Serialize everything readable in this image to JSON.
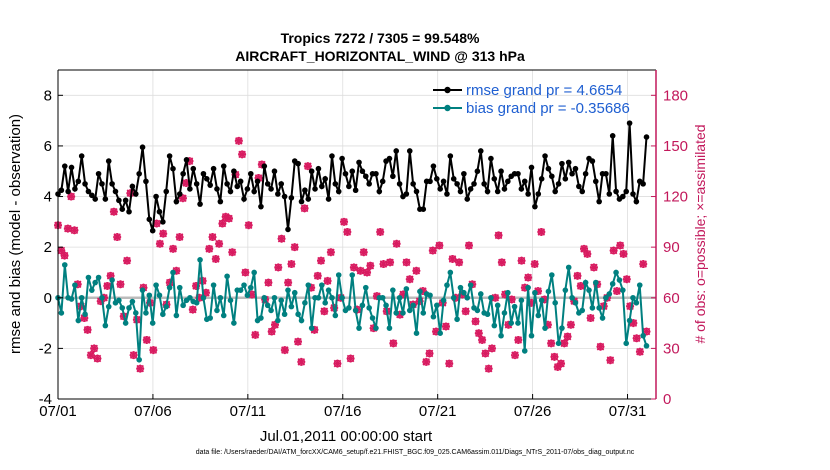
{
  "chart_data": {
    "type": "line",
    "title_line1": "Tropics 7272 / 7305 = 99.548%",
    "title_line2": "AIRCRAFT_HORIZONTAL_WIND @ 313 hPa",
    "xlabel": "Jul.01,2011 00:00:00 start",
    "ylabel_left": "rmse and bias (model - observation)",
    "ylabel_right": "# of obs: o=possible; ×=assimilated",
    "xlim": [
      0,
      31.5
    ],
    "ylim_left": [
      -4,
      9
    ],
    "ylim_right": [
      0,
      195
    ],
    "x_ticks": [
      {
        "v": 0,
        "label": "07/01"
      },
      {
        "v": 5,
        "label": "07/06"
      },
      {
        "v": 10,
        "label": "07/11"
      },
      {
        "v": 15,
        "label": "07/16"
      },
      {
        "v": 20,
        "label": "07/21"
      },
      {
        "v": 25,
        "label": "07/26"
      },
      {
        "v": 30,
        "label": "07/31"
      }
    ],
    "y_ticks_left": [
      "-4",
      "-2",
      "0",
      "2",
      "4",
      "6",
      "8"
    ],
    "y_ticks_right": [
      "0",
      "30",
      "60",
      "90",
      "120",
      "150",
      "180"
    ],
    "zero_line": 0,
    "colors": {
      "rmse": "#000000",
      "bias": "#008080",
      "obs": "#d81b60",
      "axis_right": "#c2185b",
      "zero": "#bbbbbb",
      "grid": "#dddddd",
      "legend_text": "#1f5fd1"
    },
    "legend": {
      "placement": "top-right",
      "entries": [
        "rmse grand pr = 4.6654",
        "bias grand pr = -0.35686"
      ]
    },
    "series": [
      {
        "name": "rmse",
        "values": [
          4.1,
          4.25,
          5.2,
          4.2,
          5.15,
          4.3,
          4.6,
          5.6,
          4.5,
          4.2,
          4.05,
          3.9,
          4.9,
          4.5,
          3.9,
          5.4,
          4.5,
          4.2,
          3.85,
          3.5,
          3.85,
          3.4,
          4.4,
          4.1,
          4.9,
          5.95,
          4.6,
          3.1,
          2.65,
          4.0,
          3.4,
          3.0,
          4.2,
          5.6,
          5.1,
          3.8,
          4.1,
          4.9,
          5.45,
          4.3,
          5.1,
          4.5,
          3.7,
          4.9,
          4.7,
          4.45,
          5.1,
          4.3,
          3.8,
          5.2,
          4.5,
          4.2,
          5.0,
          4.4,
          4.6,
          3.9,
          4.3,
          4.9,
          4.2,
          4.6,
          3.6,
          5.2,
          4.5,
          4.3,
          5.0,
          4.1,
          4.5,
          4.0,
          2.7,
          3.95,
          5.4,
          5.3,
          3.8,
          4.25,
          3.9,
          5.0,
          4.3,
          5.1,
          4.4,
          4.7,
          3.9,
          5.6,
          4.5,
          4.2,
          5.5,
          4.9,
          4.4,
          5.0,
          4.25,
          5.35,
          5.0,
          4.8,
          4.5,
          4.9,
          4.9,
          4.2,
          4.6,
          5.4,
          5.5,
          4.8,
          5.8,
          4.5,
          4.0,
          4.1,
          5.8,
          4.5,
          4.2,
          3.5,
          3.5,
          4.6,
          4.6,
          5.2,
          4.7,
          4.3,
          4.6,
          4.1,
          5.6,
          4.7,
          4.5,
          4.2,
          4.9,
          3.9,
          4.3,
          4.5,
          5.0,
          5.8,
          4.5,
          4.2,
          5.5,
          4.7,
          4.2,
          5.0,
          4.3,
          4.6,
          4.8,
          4.9,
          4.9,
          4.3,
          4.6,
          4.1,
          5.15,
          3.6,
          4.1,
          4.7,
          5.6,
          5.1,
          4.8,
          4.2,
          4.5,
          5.3,
          4.7,
          5.35,
          4.9,
          5.1,
          4.4,
          4.2,
          4.9,
          5.5,
          5.4,
          4.6,
          3.8,
          4.9,
          4.9,
          4.1,
          6.4,
          4.2,
          3.9,
          4.0,
          4.2,
          6.9,
          4.1,
          3.8,
          4.6,
          4.5,
          6.35
        ]
      },
      {
        "name": "bias",
        "values": [
          0.0,
          -0.6,
          1.3,
          0.0,
          -0.05,
          0.5,
          -0.9,
          0.0,
          -0.65,
          0.8,
          0.3,
          0.6,
          0.8,
          0.0,
          -1.1,
          -0.35,
          0.7,
          -0.2,
          -0.1,
          -0.4,
          -1.0,
          -0.4,
          -0.15,
          -0.6,
          -2.45,
          0.3,
          -0.6,
          0.1,
          -1.0,
          0.5,
          0.1,
          -0.65,
          -0.35,
          0.4,
          1.0,
          -0.7,
          0.4,
          -0.3,
          -0.1,
          0.0,
          -0.15,
          -0.2,
          1.5,
          0.0,
          -0.85,
          -0.8,
          0.5,
          -0.5,
          0.0,
          -0.7,
          0.85,
          -0.1,
          -1.0,
          0.3,
          0.3,
          0.5,
          0.1,
          0.4,
          1.0,
          -0.9,
          -0.8,
          0.0,
          -0.3,
          -0.5,
          0.0,
          -0.9,
          -0.1,
          -0.65,
          0.3,
          -0.35,
          0.2,
          -0.65,
          -0.9,
          -0.2,
          0.5,
          -1.2,
          0.0,
          0.0,
          0.5,
          -0.2,
          0.3,
          0.0,
          -0.7,
          0.9,
          0.0,
          -0.5,
          -0.4,
          0.9,
          -0.5,
          -1.2,
          -0.3,
          0.4,
          -0.4,
          -0.8,
          -1.2,
          0.0,
          0.0,
          -0.3,
          -1.2,
          0.3,
          -0.6,
          0.0,
          -0.6,
          0.35,
          -0.5,
          -0.3,
          -1.4,
          0.25,
          -0.6,
          0.15,
          0.1,
          -0.75,
          -0.3,
          -1.4,
          -0.1,
          0.5,
          1.0,
          0.0,
          -0.85,
          0.4,
          0.2,
          0.0,
          0.5,
          -0.4,
          -0.5,
          0.15,
          -0.6,
          -0.65,
          0.0,
          -1.1,
          -0.3,
          -1.5,
          -0.6,
          0.2,
          -1.0,
          -0.35,
          -1.0,
          -0.1,
          -2.1,
          0.4,
          -1.5,
          0.2,
          -0.7,
          -0.1,
          -1.2,
          0.25,
          0.9,
          -0.2,
          -1.8,
          -1.2,
          0.3,
          1.2,
          0.0,
          -0.2,
          -0.6,
          -0.5,
          0.6,
          0.3,
          -0.4,
          0.6,
          -0.4,
          -0.8,
          0.0,
          0.15,
          0.55,
          1.0,
          0.7,
          0.3,
          -1.8,
          -0.9,
          0.0,
          -0.2,
          0.5,
          -1.5,
          -1.9
        ]
      },
      {
        "name": "obs_possible",
        "values": [
          103,
          88,
          85,
          101,
          120,
          100,
          68,
          55,
          48,
          41,
          26,
          30,
          24,
          58,
          60,
          67,
          73,
          111,
          96,
          68,
          49,
          82,
          122,
          26,
          47,
          18,
          66,
          35,
          57,
          29,
          104,
          92,
          98,
          56,
          69,
          89,
          76,
          96,
          119,
          128,
          141,
          53,
          67,
          60,
          70,
          63,
          89,
          96,
          83,
          92,
          104,
          108,
          107,
          87,
          133,
          153,
          145,
          75,
          103,
          62,
          38,
          131,
          139,
          59,
          69,
          40,
          44,
          78,
          95,
          29,
          69,
          80,
          90,
          34,
          22,
          113,
          138,
          66,
          41,
          73,
          82,
          52,
          70,
          87,
          54,
          21,
          60,
          105,
          99,
          24,
          78,
          53,
          76,
          87,
          75,
          79,
          42,
          61,
          99,
          80,
          52,
          81,
          33,
          92,
          50,
          62,
          81,
          71,
          56,
          76,
          58,
          64,
          22,
          27,
          88,
          40,
          91,
          57,
          43,
          21,
          83,
          60,
          81,
          62,
          52,
          91,
          68,
          46,
          39,
          35,
          27,
          18,
          30,
          60,
          97,
          81,
          62,
          44,
          59,
          26,
          35,
          82,
          66,
          72,
          57,
          80,
          64,
          99,
          59,
          44,
          33,
          25,
          19,
          21,
          33,
          37,
          44,
          58,
          73,
          67,
          89,
          86,
          48,
          78,
          68,
          31,
          55,
          60,
          23,
          88,
          64,
          91,
          86,
          71,
          55,
          45,
          36,
          28,
          80,
          40
        ]
      }
    ]
  },
  "footer": "data file: /Users/raeder/DAI/ATM_forcXX/CAM6_setup/f.e21.FHIST_BGC.f09_025.CAM6assim.011/Diags_NTrS_2011-07/obs_diag_output.nc"
}
